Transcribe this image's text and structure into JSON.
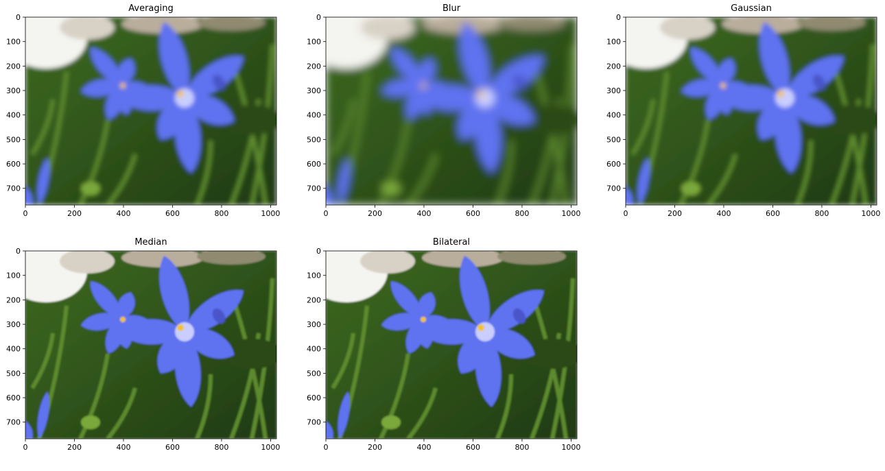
{
  "figure": {
    "panels": [
      {
        "title": "Averaging",
        "filter": "averaging"
      },
      {
        "title": "Blur",
        "filter": "blur"
      },
      {
        "title": "Gaussian",
        "filter": "gaussian"
      },
      {
        "title": "Median",
        "filter": "median"
      },
      {
        "title": "Bilateral",
        "filter": "bilateral"
      }
    ]
  },
  "chart_data": [
    {
      "type": "image",
      "title": "Averaging",
      "xlim": [
        0,
        1024
      ],
      "ylim": [
        768,
        0
      ],
      "xticks": [
        0,
        200,
        400,
        600,
        800,
        1000
      ],
      "yticks": [
        0,
        100,
        200,
        300,
        400,
        500,
        600,
        700
      ],
      "blur": "moderate"
    },
    {
      "type": "image",
      "title": "Blur",
      "xlim": [
        0,
        1024
      ],
      "ylim": [
        768,
        0
      ],
      "xticks": [
        0,
        200,
        400,
        600,
        800,
        1000
      ],
      "yticks": [
        0,
        100,
        200,
        300,
        400,
        500,
        600,
        700
      ],
      "blur": "strong"
    },
    {
      "type": "image",
      "title": "Gaussian",
      "xlim": [
        0,
        1024
      ],
      "ylim": [
        768,
        0
      ],
      "xticks": [
        0,
        200,
        400,
        600,
        800,
        1000
      ],
      "yticks": [
        0,
        100,
        200,
        300,
        400,
        500,
        600,
        700
      ],
      "blur": "moderate"
    },
    {
      "type": "image",
      "title": "Median",
      "xlim": [
        0,
        1024
      ],
      "ylim": [
        768,
        0
      ],
      "xticks": [
        0,
        200,
        400,
        600,
        800,
        1000
      ],
      "yticks": [
        0,
        100,
        200,
        300,
        400,
        500,
        600,
        700
      ],
      "blur": "light"
    },
    {
      "type": "image",
      "title": "Bilateral",
      "xlim": [
        0,
        1024
      ],
      "ylim": [
        768,
        0
      ],
      "xticks": [
        0,
        200,
        400,
        600,
        800,
        1000
      ],
      "yticks": [
        0,
        100,
        200,
        300,
        400,
        500,
        600,
        700
      ],
      "blur": "light"
    }
  ],
  "colors": {
    "petal": "#5f72f0",
    "petal_light": "#c9ceff",
    "foliage_dark": "#1f3a12",
    "foliage": "#3e6b22",
    "highlight": "#f4f4f0",
    "stamen": "#f2c22a"
  }
}
